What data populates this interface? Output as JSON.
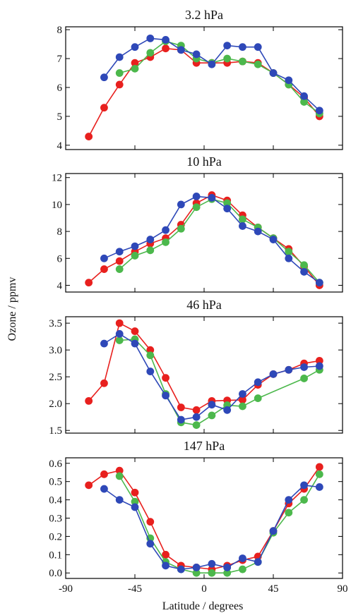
{
  "figure": {
    "ylabel": "Ozone / ppmv",
    "xlabel": "Latitude / degrees"
  },
  "chart_data": [
    {
      "type": "line",
      "title": "3.2 hPa",
      "xlim": [
        -90,
        90
      ],
      "ylim": [
        3.85,
        8.1
      ],
      "yticks": [
        "4",
        "5",
        "6",
        "7",
        "8"
      ],
      "xticks": [],
      "series": [
        {
          "color": "#e8201e",
          "x": [
            -75,
            -65,
            -55,
            -45,
            -35,
            -25,
            -15,
            -5,
            5,
            15,
            25,
            35,
            45,
            55,
            65,
            75
          ],
          "values": [
            4.3,
            5.3,
            6.1,
            6.85,
            7.05,
            7.35,
            7.3,
            6.85,
            6.85,
            6.85,
            6.9,
            6.85,
            6.5,
            6.1,
            5.65,
            5.0
          ]
        },
        {
          "color": "#4cb84c",
          "x": [
            -55,
            -45,
            -35,
            -25,
            -15,
            -5,
            5,
            15,
            25,
            35,
            45,
            55,
            65,
            75
          ],
          "values": [
            6.5,
            6.65,
            7.2,
            7.6,
            7.45,
            7.0,
            6.85,
            7.0,
            6.9,
            6.8,
            6.5,
            6.1,
            5.5,
            5.1
          ]
        },
        {
          "color": "#2e48b8",
          "x": [
            -65,
            -55,
            -45,
            -35,
            -25,
            -15,
            -5,
            5,
            15,
            25,
            35,
            45,
            55,
            65,
            75
          ],
          "values": [
            6.35,
            7.05,
            7.4,
            7.7,
            7.65,
            7.3,
            7.15,
            6.8,
            7.45,
            7.4,
            7.4,
            6.5,
            6.25,
            5.7,
            5.2
          ]
        }
      ]
    },
    {
      "type": "line",
      "title": "10 hPa",
      "xlim": [
        -90,
        90
      ],
      "ylim": [
        3.5,
        12.3
      ],
      "yticks": [
        "4",
        "6",
        "8",
        "10",
        "12"
      ],
      "xticks": [],
      "series": [
        {
          "color": "#e8201e",
          "x": [
            -75,
            -65,
            -55,
            -45,
            -35,
            -25,
            -15,
            -5,
            5,
            15,
            25,
            35,
            45,
            55,
            65,
            75
          ],
          "values": [
            4.2,
            5.2,
            5.8,
            6.5,
            7.1,
            7.5,
            8.5,
            10.1,
            10.7,
            10.3,
            9.2,
            8.3,
            7.5,
            6.7,
            5.4,
            4.0
          ]
        },
        {
          "color": "#4cb84c",
          "x": [
            -55,
            -45,
            -35,
            -25,
            -15,
            -5,
            5,
            15,
            25,
            35,
            45,
            55,
            65,
            75
          ],
          "values": [
            5.2,
            6.2,
            6.6,
            7.2,
            8.2,
            9.8,
            10.4,
            10.1,
            8.9,
            8.3,
            7.5,
            6.5,
            5.5,
            4.2
          ]
        },
        {
          "color": "#2e48b8",
          "x": [
            -65,
            -55,
            -45,
            -35,
            -25,
            -15,
            -5,
            5,
            15,
            25,
            35,
            45,
            55,
            65,
            75
          ],
          "values": [
            6.0,
            6.5,
            6.9,
            7.4,
            8.1,
            10.0,
            10.6,
            10.5,
            9.7,
            8.4,
            8.0,
            7.4,
            6.0,
            5.0,
            4.2
          ]
        }
      ]
    },
    {
      "type": "line",
      "title": "46 hPa",
      "xlim": [
        -90,
        90
      ],
      "ylim": [
        1.45,
        3.62
      ],
      "yticks": [
        "1.5",
        "2.0",
        "2.5",
        "3.0",
        "3.5"
      ],
      "xticks": [],
      "series": [
        {
          "color": "#e8201e",
          "x": [
            -75,
            -65,
            -55,
            -45,
            -35,
            -25,
            -15,
            -5,
            5,
            15,
            25,
            35,
            45,
            55,
            65,
            75
          ],
          "values": [
            2.05,
            2.38,
            3.5,
            3.35,
            3.0,
            2.48,
            1.93,
            1.88,
            2.05,
            2.06,
            2.07,
            2.35,
            2.55,
            2.63,
            2.75,
            2.8
          ]
        },
        {
          "color": "#4cb84c",
          "x": [
            -55,
            -45,
            -35,
            -25,
            -15,
            -5,
            5,
            15,
            25,
            35,
            65,
            75
          ],
          "values": [
            3.18,
            3.2,
            2.9,
            2.18,
            1.65,
            1.6,
            1.78,
            1.97,
            1.95,
            2.1,
            2.47,
            2.63
          ]
        },
        {
          "color": "#2e48b8",
          "x": [
            -65,
            -55,
            -45,
            -35,
            -25,
            -15,
            -5,
            5,
            15,
            25,
            35,
            45,
            55,
            65,
            75
          ],
          "values": [
            3.12,
            3.3,
            3.12,
            2.6,
            2.15,
            1.7,
            1.75,
            1.98,
            1.88,
            2.18,
            2.4,
            2.55,
            2.63,
            2.68,
            2.7
          ]
        }
      ]
    },
    {
      "type": "line",
      "title": "147 hPa",
      "xlim": [
        -90,
        90
      ],
      "ylim": [
        -0.03,
        0.63
      ],
      "yticks": [
        "0.0",
        "0.1",
        "0.2",
        "0.3",
        "0.4",
        "0.5",
        "0.6"
      ],
      "xticks": [
        "-90",
        "-45",
        "0",
        "45",
        "90"
      ],
      "series": [
        {
          "color": "#e8201e",
          "x": [
            -75,
            -65,
            -55,
            -45,
            -35,
            -25,
            -15,
            -5,
            5,
            15,
            25,
            35,
            45,
            55,
            65,
            75
          ],
          "values": [
            0.48,
            0.54,
            0.56,
            0.44,
            0.28,
            0.1,
            0.04,
            0.03,
            0.02,
            0.04,
            0.07,
            0.09,
            0.23,
            0.38,
            0.46,
            0.58
          ]
        },
        {
          "color": "#4cb84c",
          "x": [
            -55,
            -45,
            -35,
            -25,
            -15,
            -5,
            5,
            15,
            25,
            35,
            45,
            55,
            65,
            75
          ],
          "values": [
            0.53,
            0.39,
            0.19,
            0.06,
            0.02,
            0.0,
            0.0,
            0.0,
            0.02,
            0.06,
            0.22,
            0.33,
            0.4,
            0.54
          ]
        },
        {
          "color": "#2e48b8",
          "x": [
            -65,
            -55,
            -45,
            -35,
            -25,
            -15,
            -5,
            5,
            15,
            25,
            35,
            45,
            55,
            65,
            75
          ],
          "values": [
            0.46,
            0.4,
            0.36,
            0.16,
            0.04,
            0.02,
            0.03,
            0.05,
            0.03,
            0.08,
            0.06,
            0.23,
            0.4,
            0.48,
            0.47
          ]
        }
      ]
    }
  ]
}
